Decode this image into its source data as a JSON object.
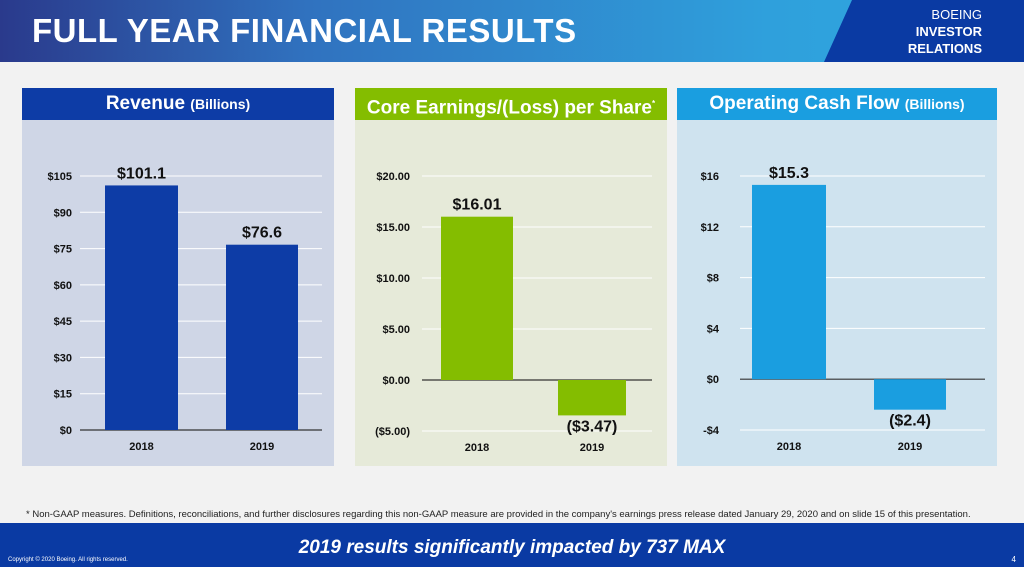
{
  "header": {
    "title": "FULL YEAR FINANCIAL RESULTS",
    "brand_line1": "BOEING",
    "brand_line2": "INVESTOR",
    "brand_line3": "RELATIONS"
  },
  "colors": {
    "revenue": "#0d3ca6",
    "earnings": "#84bd00",
    "cashflow": "#1a9ee0"
  },
  "chart_data": [
    {
      "type": "bar",
      "title": "Revenue",
      "title_unit": "(Billions)",
      "categories": [
        "2018",
        "2019"
      ],
      "values": [
        101.1,
        76.6
      ],
      "value_labels": [
        "$101.1",
        "$76.6"
      ],
      "ylim": [
        0,
        105
      ],
      "ticks": [
        0,
        15,
        30,
        45,
        60,
        75,
        90,
        105
      ],
      "tick_labels": [
        "$0",
        "$15",
        "$30",
        "$45",
        "$60",
        "$75",
        "$90",
        "$105"
      ],
      "grid": true
    },
    {
      "type": "bar",
      "title": "Core Earnings/(Loss) per Share",
      "title_note": "*",
      "categories": [
        "2018",
        "2019"
      ],
      "values": [
        16.01,
        -3.47
      ],
      "value_labels": [
        "$16.01",
        "($3.47)"
      ],
      "ylim": [
        -5,
        20
      ],
      "ticks": [
        -5,
        0,
        5,
        10,
        15,
        20
      ],
      "tick_labels": [
        "($5.00)",
        "$0.00",
        "$5.00",
        "$10.00",
        "$15.00",
        "$20.00"
      ],
      "grid": true
    },
    {
      "type": "bar",
      "title": "Operating Cash Flow",
      "title_unit": "(Billions)",
      "categories": [
        "2018",
        "2019"
      ],
      "values": [
        15.3,
        -2.4
      ],
      "value_labels": [
        "$15.3",
        "($2.4)"
      ],
      "ylim": [
        -4,
        16
      ],
      "ticks": [
        -4,
        0,
        4,
        8,
        12,
        16
      ],
      "tick_labels": [
        "-$4",
        "$0",
        "$4",
        "$8",
        "$12",
        "$16"
      ],
      "grid": true
    }
  ],
  "footnote": "* Non-GAAP measures. Definitions, reconciliations, and further disclosures regarding this non-GAAP measure are provided in the company's earnings press release dated January 29, 2020 and on slide 15 of this presentation.",
  "banner": "2019 results significantly impacted by 737 MAX",
  "copyright": "Copyright © 2020 Boeing. All rights reserved.",
  "page_number": "4"
}
